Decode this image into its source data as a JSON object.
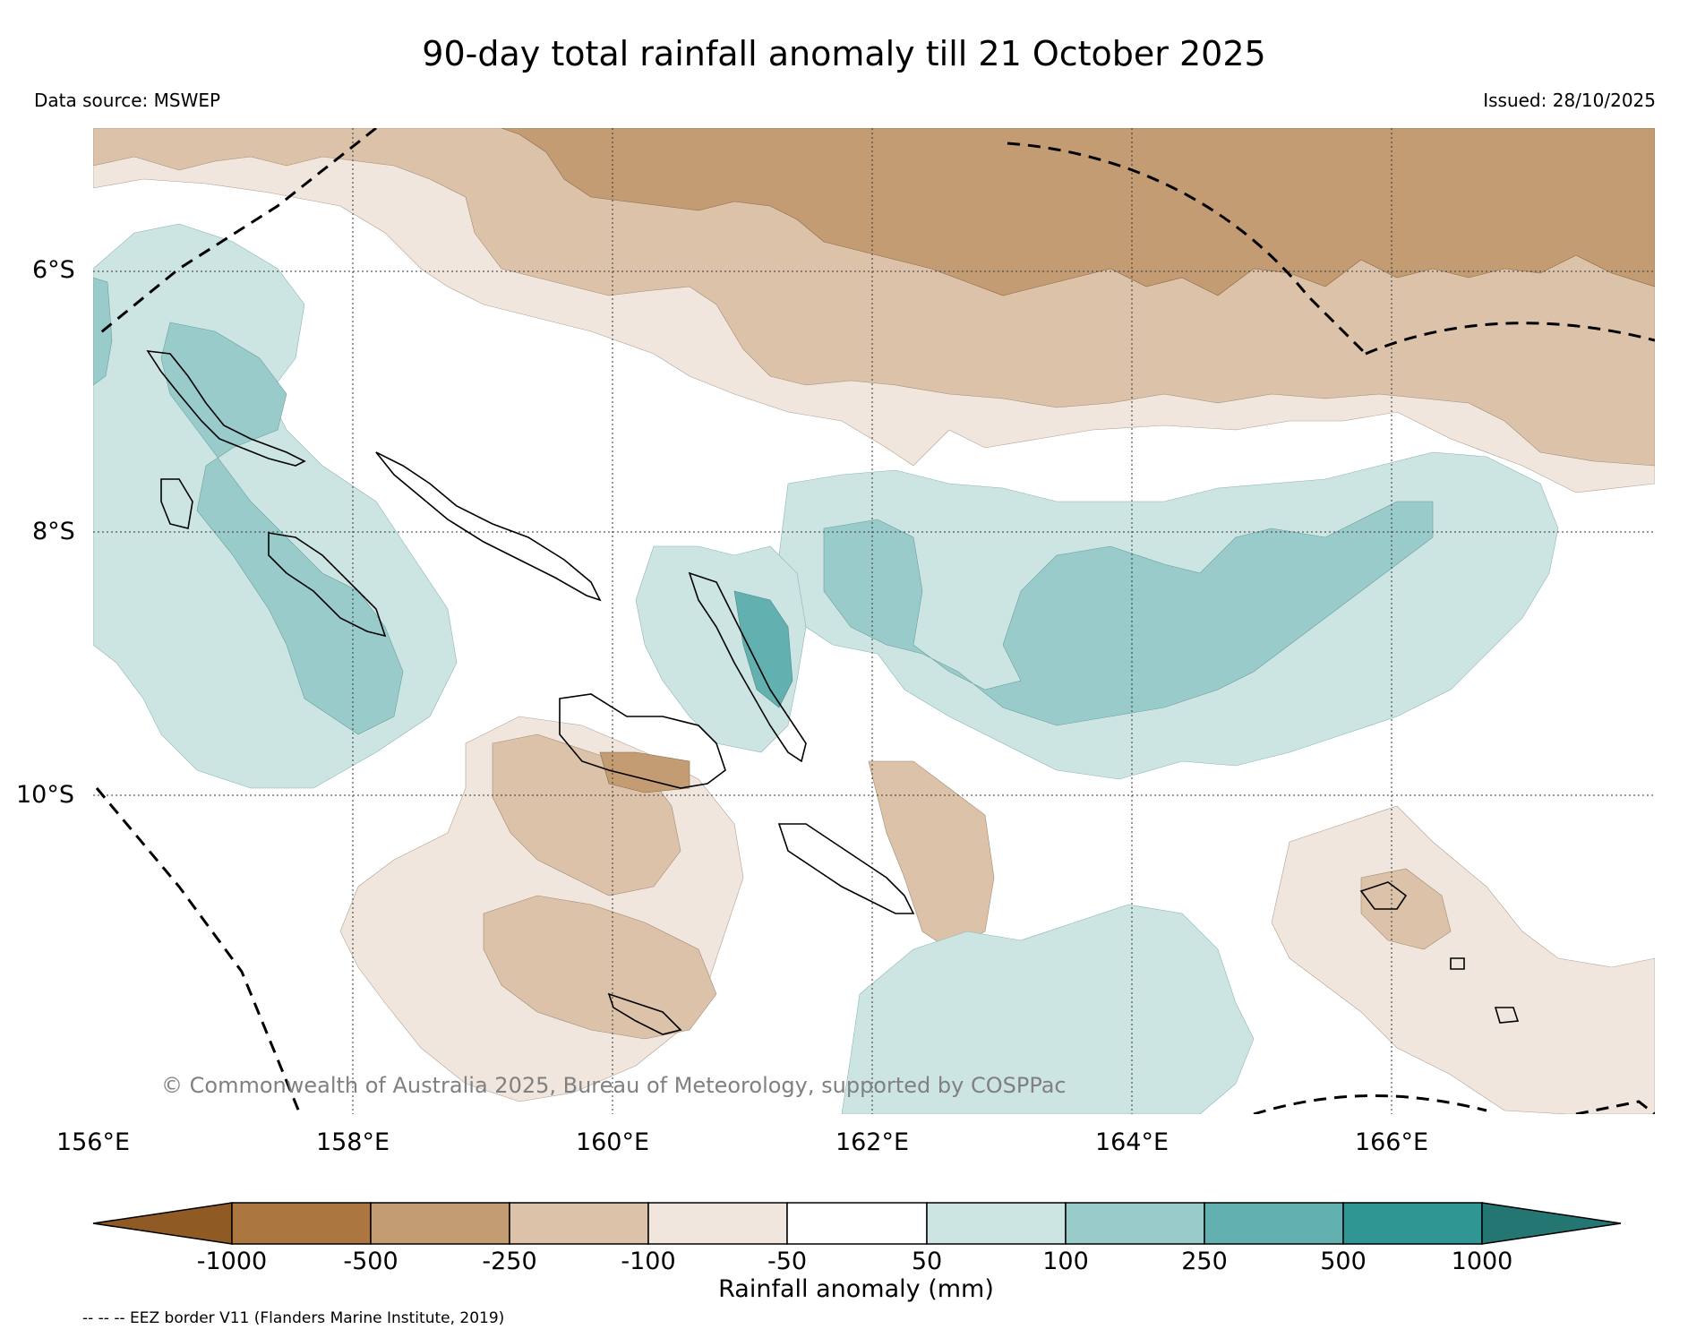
{
  "title": "90-day total rainfall anomaly till 21 October 2025",
  "data_source": "Data source: MSWEP",
  "issued": "Issued: 28/10/2025",
  "credit": "© Commonwealth of Australia 2025, Bureau of Meteorology, supported by COSPPac",
  "eez_note": "-- -- -- EEZ border V11 (Flanders Marine Institute, 2019)",
  "map": {
    "lat_labels": [
      "6°S",
      "8°S",
      "10°S"
    ],
    "lon_labels": [
      "156°E",
      "158°E",
      "160°E",
      "162°E",
      "164°E",
      "166°E"
    ],
    "extent": {
      "lon_min": 156,
      "lon_max": 168,
      "lat_min": -12.4,
      "lat_max": -4.9
    }
  },
  "colorbar": {
    "label": "Rainfall anomaly (mm)",
    "ticks": [
      "-1000",
      "-500",
      "-250",
      "-100",
      "-50",
      "50",
      "100",
      "250",
      "500",
      "1000"
    ],
    "colors": {
      "lt_neg1000": "#8f5a24",
      "neg1000_neg500": "#ab7640",
      "neg500_neg250": "#c39c73",
      "neg250_neg100": "#dbc2a9",
      "neg100_neg50": "#f0e6dd",
      "neg50_50": "#ffffff",
      "50_100": "#cce5e3",
      "100_250": "#99cbca",
      "250_500": "#63b0b0",
      "500_1000": "#2f9693",
      "gt_1000": "#247673"
    }
  }
}
